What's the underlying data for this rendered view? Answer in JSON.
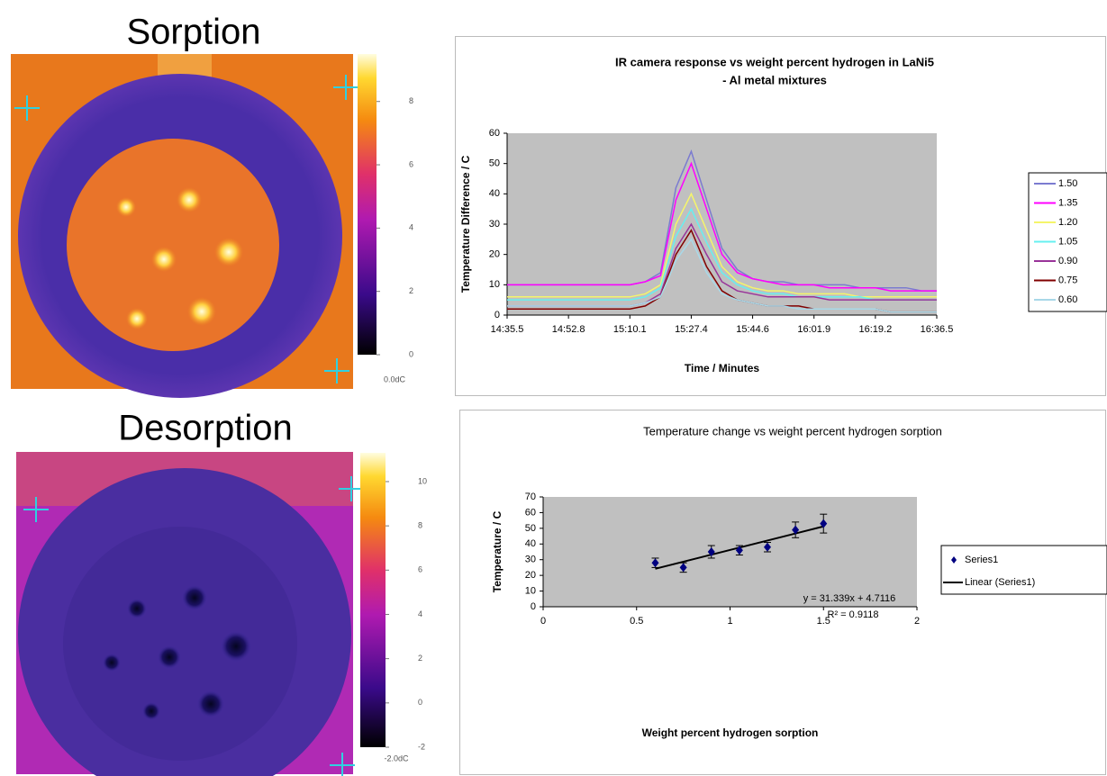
{
  "images": [
    {
      "title": "Sorption",
      "colorbar": {
        "lim": [
          0,
          9.5
        ],
        "ticks": [
          0,
          2,
          4,
          6,
          8
        ],
        "label": "0.0dC"
      }
    },
    {
      "title": "Desorption",
      "colorbar": {
        "lim": [
          -2,
          11.3
        ],
        "ticks": [
          -2,
          0,
          2,
          4,
          6,
          8,
          10
        ],
        "label": "-2.0dC"
      }
    }
  ],
  "chart_data": [
    {
      "type": "line",
      "title": [
        "IR camera response vs weight percent hydrogen in LaNi5",
        "- Al metal mixtures"
      ],
      "x_label": "Time / Minutes",
      "y_label": "Temperature Difference / C",
      "categories": [
        "14:35.5",
        null,
        null,
        null,
        "14:52.8",
        null,
        null,
        null,
        "15:10.1",
        null,
        null,
        null,
        "15:27.4",
        null,
        null,
        null,
        "15:44.6",
        null,
        null,
        null,
        "16:01.9",
        null,
        null,
        null,
        "16:19.2",
        null,
        null,
        null,
        "16:36.5"
      ],
      "ylim": [
        0,
        60
      ],
      "yticks": [
        0,
        10,
        20,
        30,
        40,
        50,
        60
      ],
      "series": [
        {
          "name": "1.50",
          "color": "#7b7bd0",
          "values": [
            10,
            10,
            10,
            10,
            10,
            10,
            10,
            10,
            10,
            11,
            14,
            42,
            54,
            38,
            22,
            15,
            12,
            11,
            11,
            10,
            10,
            10,
            10,
            9,
            9,
            9,
            9,
            8,
            8
          ]
        },
        {
          "name": "1.35",
          "color": "#ff00ff",
          "values": [
            10,
            10,
            10,
            10,
            10,
            10,
            10,
            10,
            10,
            11,
            13,
            38,
            50,
            35,
            20,
            14,
            12,
            11,
            10,
            10,
            10,
            9,
            9,
            9,
            9,
            8,
            8,
            8,
            8
          ]
        },
        {
          "name": "1.20",
          "color": "#f5f56a",
          "values": [
            6,
            6,
            6,
            6,
            6,
            6,
            6,
            6,
            6,
            7,
            10,
            30,
            40,
            28,
            16,
            11,
            9,
            8,
            8,
            7,
            7,
            7,
            7,
            6,
            6,
            6,
            6,
            6,
            6
          ]
        },
        {
          "name": "1.05",
          "color": "#66f0f0",
          "values": [
            5,
            5,
            5,
            5,
            5,
            5,
            5,
            5,
            5,
            6,
            9,
            26,
            35,
            24,
            14,
            10,
            8,
            7,
            7,
            6,
            6,
            6,
            6,
            6,
            5,
            5,
            5,
            5,
            5
          ]
        },
        {
          "name": "0.90",
          "color": "#993399",
          "values": [
            3,
            3,
            3,
            3,
            3,
            3,
            3,
            3,
            3,
            4,
            7,
            22,
            30,
            20,
            11,
            8,
            7,
            6,
            6,
            6,
            6,
            5,
            5,
            5,
            5,
            5,
            5,
            5,
            5
          ]
        },
        {
          "name": "0.75",
          "color": "#800000",
          "values": [
            2,
            2,
            2,
            2,
            2,
            2,
            2,
            2,
            2,
            3,
            6,
            20,
            28,
            16,
            8,
            5,
            4,
            3,
            3,
            3,
            2,
            2,
            2,
            2,
            2,
            1,
            1,
            1,
            1
          ]
        },
        {
          "name": "0.60",
          "color": "#a8d8e8",
          "values": [
            3,
            3,
            3,
            3,
            3,
            3,
            3,
            3,
            3,
            4,
            6,
            18,
            25,
            14,
            7,
            5,
            4,
            3,
            3,
            2,
            2,
            2,
            2,
            2,
            2,
            1,
            1,
            1,
            1
          ]
        }
      ]
    },
    {
      "type": "scatter",
      "title": [
        "Temperature change vs weight percent hydrogen sorption"
      ],
      "x_label": "Weight percent hydrogen sorption",
      "y_label": "Temperature / C",
      "xlim": [
        0,
        2
      ],
      "xticks": [
        0,
        0.5,
        1,
        1.5,
        2
      ],
      "ylim": [
        0,
        70
      ],
      "yticks": [
        0,
        10,
        20,
        30,
        40,
        50,
        60,
        70
      ],
      "series": [
        {
          "name": "Series1",
          "color": "#000080",
          "x": [
            0.6,
            0.75,
            0.9,
            1.05,
            1.2,
            1.35,
            1.5
          ],
          "values": [
            28,
            25,
            35,
            36,
            38,
            49,
            53
          ],
          "errors": [
            3,
            3,
            4,
            3,
            3,
            5,
            6
          ]
        }
      ],
      "trendline": {
        "name": "Linear (Series1)",
        "color": "#000000",
        "equation": "y = 31.339x + 4.7116",
        "r_squared": "R² = 0.9118"
      }
    }
  ]
}
